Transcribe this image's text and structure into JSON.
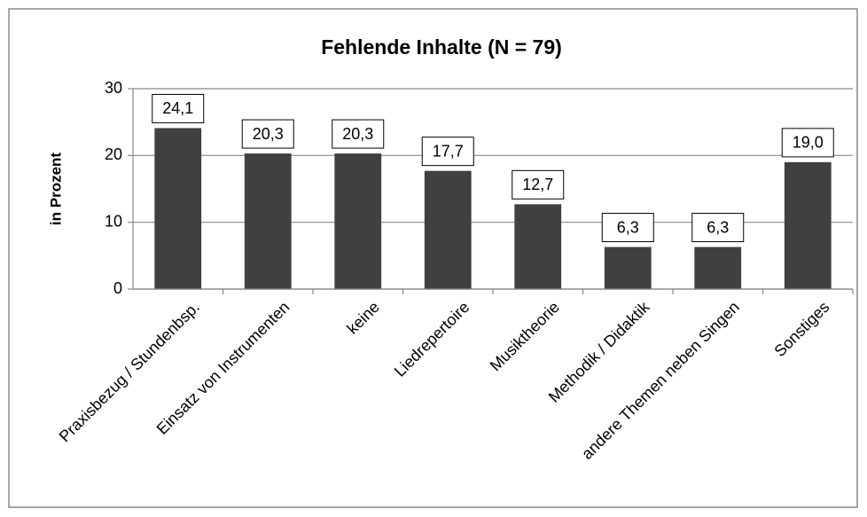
{
  "chart_data": {
    "type": "bar",
    "title": "Fehlende Inhalte (N = 79)",
    "ylabel": "in Prozent",
    "categories": [
      "Praxisbezug / Stundenbsp.",
      "Einsatz von Instrumenten",
      "keine",
      "Liedrepertoire",
      "Musiktheorie",
      "Methodik / Didaktik",
      "andere Themen neben Singen",
      "Sonstiges"
    ],
    "values": [
      24.1,
      20.3,
      20.3,
      17.7,
      12.7,
      6.3,
      6.3,
      19.0
    ],
    "value_labels": [
      "24,1",
      "20,3",
      "20,3",
      "17,7",
      "12,7",
      "6,3",
      "6,3",
      "19,0"
    ],
    "color": "#404040",
    "ylim": [
      0,
      30
    ],
    "yticks": [
      0,
      10,
      20,
      30
    ],
    "grid": true
  }
}
